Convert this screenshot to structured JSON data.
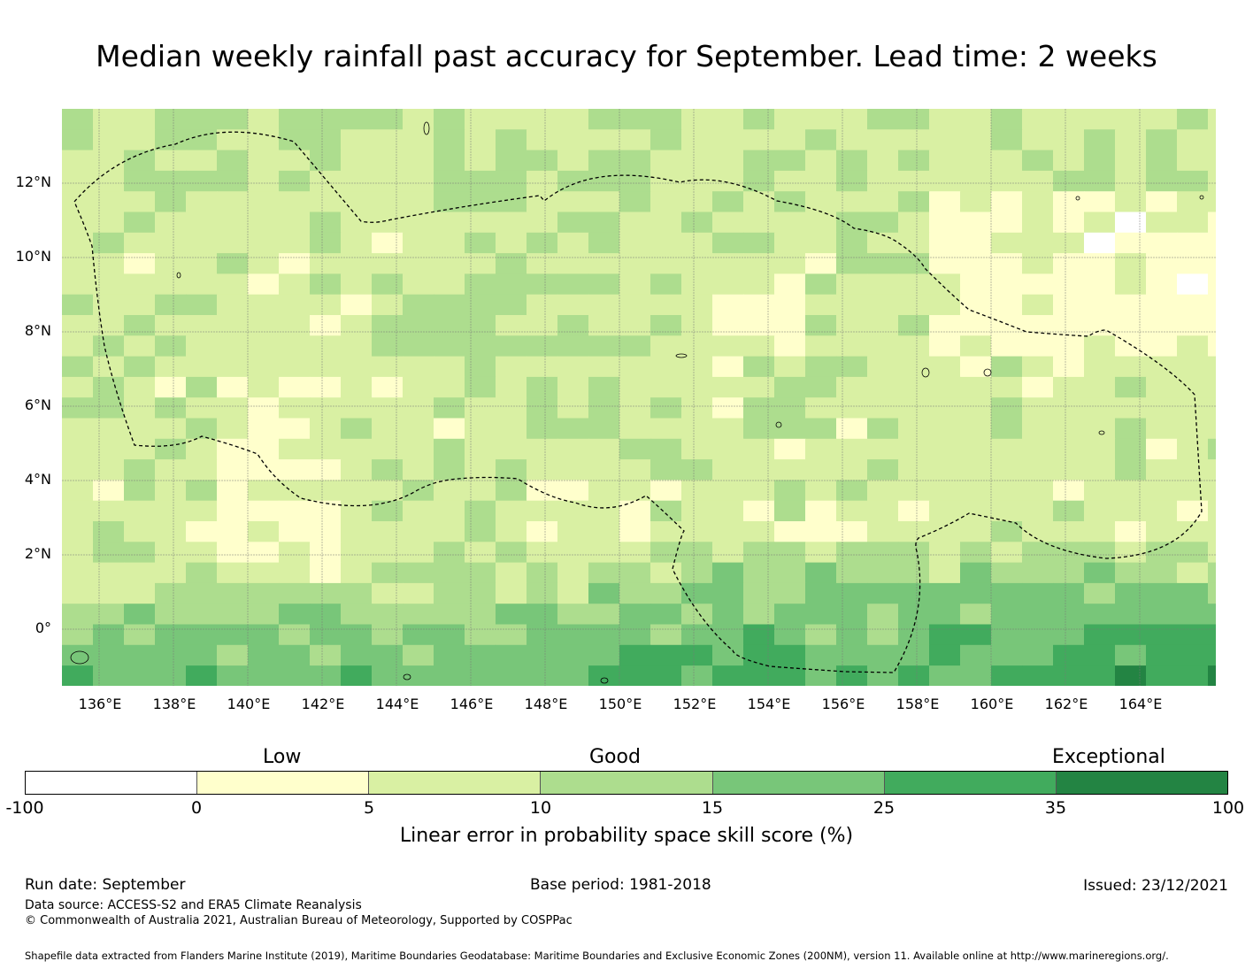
{
  "title": "Median weekly rainfall past accuracy for September. Lead time: 2 weeks",
  "map": {
    "lon_labels": [
      "136°E",
      "138°E",
      "140°E",
      "142°E",
      "144°E",
      "146°E",
      "148°E",
      "150°E",
      "152°E",
      "154°E",
      "156°E",
      "158°E",
      "160°E",
      "162°E",
      "164°E"
    ],
    "lat_labels": [
      "12°N",
      "10°N",
      "8°N",
      "6°N",
      "4°N",
      "2°N",
      "0°"
    ],
    "palette": [
      "#ffffff",
      "#ffffcc",
      "#d9f0a3",
      "#addd8e",
      "#78c679",
      "#41ab5d",
      "#238443"
    ]
  },
  "legend": {
    "categories": [
      "Low",
      "Good",
      "Exceptional"
    ],
    "ticks": [
      "-100",
      "0",
      "5",
      "10",
      "15",
      "25",
      "35",
      "100"
    ],
    "title": "Linear error in probability space skill score (%)"
  },
  "footer": {
    "run_date": "Run date: September",
    "base_period": "Base period: 1981-2018",
    "issued": "Issued: 23/12/2021",
    "data_source": "Data source: ACCESS-S2 and ERA5 Climate Reanalysis",
    "copyright": "© Commonwealth of Australia 2021, Australian Bureau of Meteorology, Supported by COSPPac",
    "shapefile": "Shapefile data extracted from Flanders Marine Institute (2019), Maritime Boundaries Geodatabase: Maritime Boundaries and Exclusive Economic Zones (200NM), version 11. Available online at http://www.marineregions.org/."
  }
}
